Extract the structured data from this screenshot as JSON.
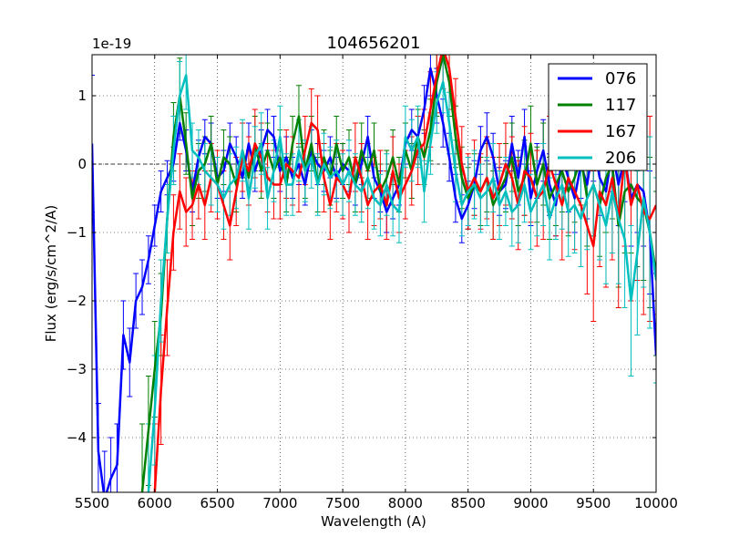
{
  "chart_data": {
    "type": "line",
    "title": "104656201",
    "xlabel": "Wavelength (A)",
    "ylabel": "Flux (erg/s/cm^2/A)",
    "offset_text": "1e-19",
    "xlim": [
      5500,
      10000
    ],
    "ylim": [
      -4.8,
      1.6
    ],
    "x_ticks": [
      5500,
      6000,
      6500,
      7000,
      7500,
      8000,
      8500,
      9000,
      9500,
      10000
    ],
    "x_tick_labels": [
      "5500",
      "6000",
      "6500",
      "7000",
      "7500",
      "8000",
      "8500",
      "9000",
      "9500",
      "10000"
    ],
    "y_ticks": [
      -4,
      -3,
      -2,
      -1,
      0,
      1
    ],
    "y_tick_labels": [
      "−4",
      "−3",
      "−2",
      "−1",
      "0",
      "1"
    ],
    "grid": true,
    "legend_position": "top-right",
    "series": [
      {
        "name": "076",
        "color": "#0000ff",
        "x": [
          5500,
          5550,
          5600,
          5650,
          5700,
          5750,
          5800,
          5850,
          5900,
          5950,
          6000,
          6050,
          6100,
          6150,
          6200,
          6250,
          6300,
          6350,
          6400,
          6450,
          6500,
          6550,
          6600,
          6650,
          6700,
          6750,
          6800,
          6850,
          6900,
          6950,
          7000,
          7050,
          7100,
          7150,
          7200,
          7250,
          7300,
          7350,
          7400,
          7450,
          7500,
          7550,
          7600,
          7650,
          7700,
          7750,
          7800,
          7850,
          7900,
          7950,
          8000,
          8050,
          8100,
          8150,
          8200,
          8250,
          8300,
          8350,
          8400,
          8450,
          8500,
          8550,
          8600,
          8650,
          8700,
          8750,
          8800,
          8850,
          8900,
          8950,
          9000,
          9050,
          9100,
          9150,
          9200,
          9250,
          9300,
          9350,
          9400,
          9450,
          9500,
          9550,
          9600,
          9650,
          9700,
          9750,
          9800,
          9850,
          9900,
          9950,
          10000
        ],
        "y": [
          0.3,
          -4.2,
          -4.9,
          -4.6,
          -4.4,
          -2.5,
          -2.9,
          -2.0,
          -1.8,
          -1.4,
          -0.9,
          -0.4,
          -0.2,
          0.0,
          0.6,
          0.2,
          -0.4,
          0.1,
          0.4,
          0.3,
          -0.2,
          -0.1,
          0.3,
          0.1,
          -0.2,
          0.3,
          -0.1,
          0.2,
          0.5,
          0.4,
          -0.1,
          0.1,
          -0.2,
          0.0,
          -0.3,
          0.2,
          0.0,
          -0.1,
          0.1,
          -0.2,
          0.0,
          -0.1,
          -0.3,
          0.0,
          0.4,
          -0.2,
          -0.4,
          -0.7,
          -0.5,
          -0.3,
          0.3,
          0.5,
          0.4,
          0.8,
          1.4,
          1.0,
          0.6,
          0.1,
          -0.5,
          -0.8,
          -0.6,
          -0.3,
          0.2,
          0.4,
          0.1,
          -0.4,
          -0.3,
          0.3,
          -0.2,
          0.4,
          -0.5,
          -0.1,
          0.2,
          -0.3,
          -0.6,
          0.1,
          -0.2,
          -0.5,
          0.0,
          -0.3,
          0.3,
          -0.2,
          -0.4,
          0.2,
          -0.3,
          0.1,
          -0.5,
          -0.3,
          -0.4,
          -1.0,
          -2.8
        ],
        "err": [
          1.0,
          0.7,
          0.7,
          0.6,
          0.6,
          0.5,
          0.5,
          0.4,
          0.4,
          0.35,
          0.3,
          0.3,
          0.25,
          0.25,
          0.25,
          0.3,
          0.3,
          0.25,
          0.25,
          0.3,
          0.3,
          0.3,
          0.3,
          0.3,
          0.3,
          0.3,
          0.3,
          0.3,
          0.3,
          0.3,
          0.3,
          0.3,
          0.3,
          0.3,
          0.3,
          0.3,
          0.3,
          0.3,
          0.3,
          0.3,
          0.3,
          0.3,
          0.3,
          0.3,
          0.3,
          0.3,
          0.3,
          0.3,
          0.3,
          0.3,
          0.3,
          0.3,
          0.3,
          0.35,
          0.4,
          0.4,
          0.35,
          0.35,
          0.35,
          0.35,
          0.35,
          0.35,
          0.35,
          0.35,
          0.35,
          0.35,
          0.35,
          0.4,
          0.4,
          0.4,
          0.4,
          0.4,
          0.45,
          0.45,
          0.45,
          0.45,
          0.5,
          0.5,
          0.5,
          0.5,
          0.55,
          0.55,
          0.6,
          0.6,
          0.6,
          0.65,
          0.7,
          0.7,
          0.8,
          0.9,
          1.2
        ]
      },
      {
        "name": "117",
        "color": "#008000",
        "x": [
          5900,
          5950,
          6000,
          6050,
          6100,
          6150,
          6200,
          6250,
          6300,
          6350,
          6400,
          6450,
          6500,
          6550,
          6600,
          6650,
          6700,
          6750,
          6800,
          6850,
          6900,
          6950,
          7000,
          7050,
          7100,
          7150,
          7200,
          7250,
          7300,
          7350,
          7400,
          7450,
          7500,
          7550,
          7600,
          7650,
          7700,
          7750,
          7800,
          7850,
          7900,
          7950,
          8000,
          8050,
          8100,
          8150,
          8200,
          8250,
          8300,
          8350,
          8400,
          8450,
          8500,
          8550,
          8600,
          8650,
          8700,
          8750,
          8800,
          8850,
          8900,
          8950,
          9000,
          9050,
          9100,
          9150,
          9200,
          9250,
          9300,
          9350,
          9400,
          9450,
          9500,
          9550,
          9600,
          9650,
          9700,
          9750,
          9800,
          9850,
          9900,
          9950,
          10000
        ],
        "y": [
          -4.8,
          -3.9,
          -3.0,
          -2.2,
          -0.8,
          0.4,
          1.0,
          0.3,
          -0.5,
          -0.1,
          0.0,
          0.3,
          -0.3,
          0.1,
          0.0,
          -0.3,
          0.2,
          -0.2,
          0.3,
          -0.1,
          0.2,
          -0.1,
          0.1,
          -0.3,
          0.3,
          0.7,
          -0.1,
          0.3,
          -0.3,
          0.1,
          -0.2,
          0.3,
          -0.1,
          0.1,
          -0.3,
          0.2,
          -0.1,
          0.2,
          -0.4,
          -0.2,
          0.1,
          -0.3,
          0.2,
          -0.1,
          0.4,
          0.1,
          0.5,
          1.2,
          1.6,
          1.2,
          0.4,
          -0.2,
          -0.5,
          -0.3,
          -0.4,
          -0.2,
          -0.6,
          -0.4,
          -0.2,
          0.1,
          -0.4,
          -0.2,
          0.3,
          -0.3,
          0.0,
          -0.5,
          -0.3,
          -0.1,
          -0.4,
          -0.2,
          0.1,
          -0.5,
          -0.3,
          -0.6,
          -0.2,
          0.0,
          -0.9,
          -0.4,
          -0.3,
          -0.5,
          -0.6,
          -1.0,
          -1.6
        ],
        "err": [
          1.0,
          0.8,
          0.7,
          0.6,
          0.5,
          0.5,
          0.55,
          0.45,
          0.4,
          0.4,
          0.4,
          0.4,
          0.4,
          0.4,
          0.4,
          0.4,
          0.4,
          0.4,
          0.4,
          0.4,
          0.4,
          0.4,
          0.4,
          0.4,
          0.4,
          0.45,
          0.4,
          0.4,
          0.4,
          0.4,
          0.4,
          0.4,
          0.4,
          0.4,
          0.4,
          0.4,
          0.4,
          0.4,
          0.4,
          0.4,
          0.4,
          0.4,
          0.4,
          0.4,
          0.4,
          0.4,
          0.45,
          0.5,
          0.5,
          0.5,
          0.45,
          0.45,
          0.45,
          0.45,
          0.5,
          0.5,
          0.5,
          0.5,
          0.5,
          0.5,
          0.5,
          0.55,
          0.55,
          0.55,
          0.6,
          0.6,
          0.6,
          0.6,
          0.65,
          0.65,
          0.7,
          0.7,
          0.75,
          0.75,
          0.8,
          0.8,
          0.9,
          0.9,
          1.0,
          1.0,
          1.1,
          1.1,
          1.2
        ]
      },
      {
        "name": "167",
        "color": "#ff0000",
        "x": [
          6000,
          6050,
          6100,
          6150,
          6200,
          6250,
          6300,
          6350,
          6400,
          6450,
          6500,
          6550,
          6600,
          6650,
          6700,
          6750,
          6800,
          6850,
          6900,
          6950,
          7000,
          7050,
          7100,
          7150,
          7200,
          7250,
          7300,
          7350,
          7400,
          7450,
          7500,
          7550,
          7600,
          7650,
          7700,
          7750,
          7800,
          7850,
          7900,
          7950,
          8000,
          8050,
          8100,
          8150,
          8200,
          8250,
          8300,
          8350,
          8400,
          8450,
          8500,
          8550,
          8600,
          8650,
          8700,
          8750,
          8800,
          8850,
          8900,
          8950,
          9000,
          9050,
          9100,
          9150,
          9200,
          9250,
          9300,
          9350,
          9400,
          9450,
          9500,
          9550,
          9600,
          9650,
          9700,
          9750,
          9800,
          9850,
          9900,
          9950,
          10000
        ],
        "y": [
          -4.8,
          -3.3,
          -2.1,
          -1.0,
          -0.4,
          -0.7,
          -0.6,
          -0.3,
          -0.6,
          -0.2,
          -0.3,
          -0.6,
          -0.9,
          -0.4,
          0.1,
          -0.1,
          0.3,
          0.1,
          -0.2,
          -0.3,
          -0.3,
          0.0,
          -0.1,
          -0.2,
          0.2,
          0.6,
          0.5,
          -0.2,
          -0.6,
          -0.2,
          -0.3,
          -0.5,
          0.1,
          -0.2,
          -0.6,
          -0.4,
          -0.3,
          -0.6,
          -0.1,
          -0.5,
          -0.3,
          -0.1,
          0.2,
          0.3,
          0.8,
          1.3,
          1.7,
          1.4,
          0.7,
          0.0,
          -0.4,
          -0.2,
          -0.4,
          -0.2,
          -0.5,
          -0.3,
          0.0,
          -0.2,
          -0.6,
          -0.1,
          -0.2,
          -0.5,
          -0.4,
          0.0,
          -0.3,
          -0.6,
          -0.2,
          -0.4,
          -0.6,
          -0.9,
          -1.2,
          -0.4,
          -0.6,
          -0.2,
          -0.8,
          0.1,
          -0.6,
          -0.3,
          -0.7,
          -0.8,
          -0.6
        ],
        "err": [
          1.0,
          0.8,
          0.7,
          0.55,
          0.55,
          0.5,
          0.5,
          0.5,
          0.5,
          0.5,
          0.5,
          0.5,
          0.5,
          0.5,
          0.5,
          0.5,
          0.5,
          0.5,
          0.5,
          0.5,
          0.5,
          0.5,
          0.5,
          0.5,
          0.5,
          0.5,
          0.5,
          0.5,
          0.5,
          0.5,
          0.5,
          0.5,
          0.5,
          0.5,
          0.5,
          0.5,
          0.5,
          0.5,
          0.5,
          0.5,
          0.5,
          0.5,
          0.5,
          0.5,
          0.55,
          0.55,
          0.6,
          0.6,
          0.55,
          0.55,
          0.55,
          0.55,
          0.55,
          0.6,
          0.6,
          0.6,
          0.6,
          0.6,
          0.65,
          0.65,
          0.65,
          0.7,
          0.7,
          0.7,
          0.75,
          0.8,
          0.8,
          0.85,
          0.9,
          1.0,
          1.1,
          1.1,
          1.2,
          1.2,
          1.3,
          1.3,
          1.4,
          1.4,
          1.5,
          1.5,
          1.6
        ]
      },
      {
        "name": "206",
        "color": "#00bfbf",
        "x": [
          5950,
          6000,
          6050,
          6100,
          6150,
          6200,
          6250,
          6300,
          6350,
          6400,
          6450,
          6500,
          6550,
          6600,
          6650,
          6700,
          6750,
          6800,
          6850,
          6900,
          6950,
          7000,
          7050,
          7100,
          7150,
          7200,
          7250,
          7300,
          7350,
          7400,
          7450,
          7500,
          7550,
          7600,
          7650,
          7700,
          7750,
          7800,
          7850,
          7900,
          7950,
          8000,
          8050,
          8100,
          8150,
          8200,
          8250,
          8300,
          8350,
          8400,
          8450,
          8500,
          8550,
          8600,
          8650,
          8700,
          8750,
          8800,
          8850,
          8900,
          8950,
          9000,
          9050,
          9100,
          9150,
          9200,
          9250,
          9300,
          9350,
          9400,
          9450,
          9500,
          9550,
          9600,
          9650,
          9700,
          9750,
          9800,
          9850,
          9900,
          9950,
          10000
        ],
        "y": [
          -4.8,
          -3.6,
          -2.0,
          -0.8,
          0.2,
          1.0,
          1.3,
          0.2,
          0.1,
          -0.1,
          -0.2,
          -0.3,
          -0.5,
          -0.3,
          -0.2,
          0.2,
          -0.5,
          0.1,
          0.3,
          -0.5,
          -0.1,
          0.4,
          -0.3,
          -0.3,
          0.2,
          -0.1,
          0.1,
          -0.3,
          0.0,
          -0.2,
          -0.1,
          -0.3,
          -0.1,
          -0.3,
          -0.4,
          -0.2,
          -0.5,
          -0.6,
          -0.3,
          -0.6,
          -0.7,
          0.4,
          0.2,
          0.4,
          -0.4,
          0.3,
          0.9,
          1.2,
          0.6,
          -0.1,
          -0.6,
          -0.4,
          -0.3,
          -0.5,
          -0.4,
          -0.2,
          -0.6,
          -0.4,
          -0.7,
          -0.6,
          -0.3,
          -0.7,
          -0.5,
          -0.3,
          -0.8,
          -0.5,
          -0.3,
          -0.7,
          -0.6,
          -0.8,
          -0.5,
          -0.3,
          -0.6,
          -0.9,
          -0.4,
          -0.8,
          -1.1,
          -2.0,
          -1.3,
          -0.5,
          -1.0,
          -1.7
        ],
        "err": [
          1.0,
          0.8,
          0.6,
          0.5,
          0.5,
          0.5,
          0.5,
          0.4,
          0.4,
          0.4,
          0.4,
          0.4,
          0.45,
          0.45,
          0.45,
          0.45,
          0.45,
          0.45,
          0.45,
          0.45,
          0.45,
          0.45,
          0.45,
          0.45,
          0.45,
          0.45,
          0.45,
          0.45,
          0.45,
          0.45,
          0.45,
          0.45,
          0.45,
          0.45,
          0.45,
          0.45,
          0.45,
          0.45,
          0.45,
          0.45,
          0.45,
          0.45,
          0.45,
          0.45,
          0.45,
          0.45,
          0.45,
          0.45,
          0.45,
          0.45,
          0.45,
          0.5,
          0.5,
          0.5,
          0.5,
          0.5,
          0.5,
          0.5,
          0.5,
          0.55,
          0.55,
          0.55,
          0.55,
          0.6,
          0.6,
          0.6,
          0.65,
          0.65,
          0.7,
          0.7,
          0.75,
          0.75,
          0.8,
          0.85,
          0.9,
          0.95,
          1.0,
          1.1,
          1.2,
          1.3,
          1.4,
          1.5
        ]
      }
    ]
  }
}
